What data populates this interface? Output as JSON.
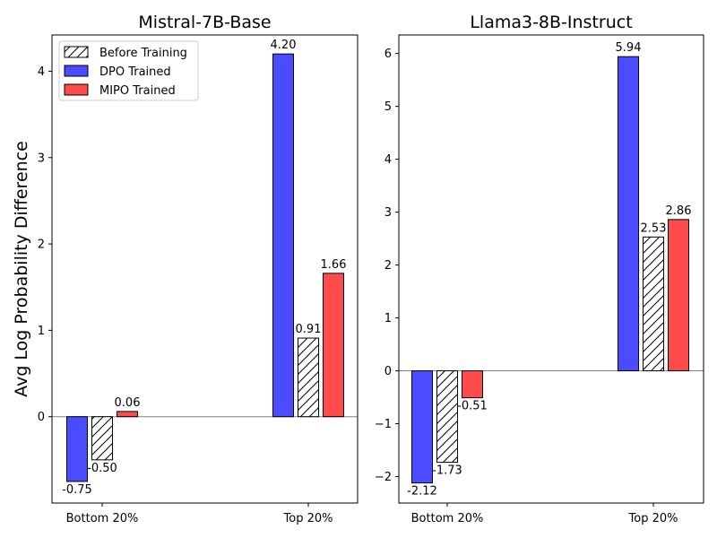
{
  "chart_data": {
    "type": "bar",
    "ylabel": "Avg Log Probability Difference",
    "legend": {
      "placement": "top-left",
      "entries": [
        {
          "name": "Before Training",
          "style": "hatched"
        },
        {
          "name": "DPO Trained",
          "color": "#4b4bff"
        },
        {
          "name": "MIPO Trained",
          "color": "#ff4b4b"
        }
      ]
    },
    "panels": [
      {
        "title": "Mistral-7B-Base",
        "categories": [
          "Bottom 20%",
          "Top 20%"
        ],
        "ylim": [
          -1,
          4.42
        ],
        "yticks": [
          0,
          1,
          2,
          3,
          4
        ],
        "series": [
          {
            "name": "DPO Trained",
            "values": [
              -0.75,
              4.2
            ],
            "labels": [
              "-0.75",
              "4.20"
            ]
          },
          {
            "name": "Before Training",
            "values": [
              -0.5,
              0.91
            ],
            "labels": [
              "-0.50",
              "0.91"
            ]
          },
          {
            "name": "MIPO Trained",
            "values": [
              0.06,
              1.66
            ],
            "labels": [
              "0.06",
              "1.66"
            ]
          }
        ]
      },
      {
        "title": "Llama3-8B-Instruct",
        "categories": [
          "Bottom 20%",
          "Top 20%"
        ],
        "ylim": [
          -2.5,
          6.35
        ],
        "yticks": [
          -2,
          -1,
          0,
          1,
          2,
          3,
          4,
          5,
          6
        ],
        "series": [
          {
            "name": "DPO Trained",
            "values": [
              -2.12,
              5.94
            ],
            "labels": [
              "-2.12",
              "5.94"
            ]
          },
          {
            "name": "Before Training",
            "values": [
              -1.73,
              2.53
            ],
            "labels": [
              "-1.73",
              "2.53"
            ]
          },
          {
            "name": "MIPO Trained",
            "values": [
              -0.51,
              2.86
            ],
            "labels": [
              "-0.51",
              "2.86"
            ]
          }
        ]
      }
    ]
  }
}
